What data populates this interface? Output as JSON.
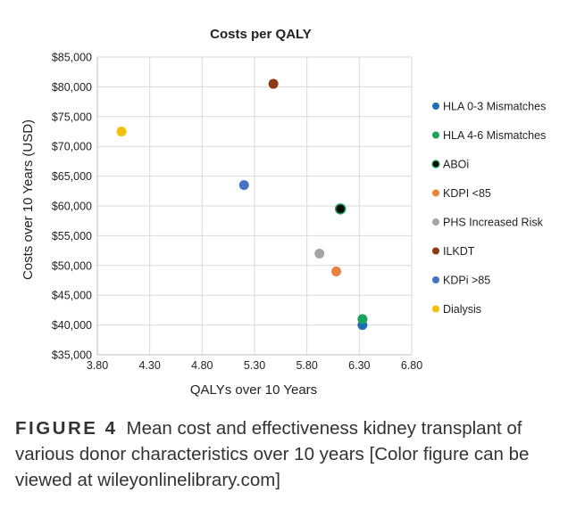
{
  "chart_data": {
    "type": "scatter",
    "title": "Costs per QALY",
    "xlabel": "QALYs over 10 Years",
    "ylabel": "Costs over 10 Years (USD)",
    "xlim": [
      3.8,
      6.8
    ],
    "ylim": [
      35000,
      85000
    ],
    "xticks": [
      3.8,
      4.3,
      4.8,
      5.3,
      5.8,
      6.3,
      6.8
    ],
    "xtick_labels": [
      "3.80",
      "4.30",
      "4.80",
      "5.30",
      "5.80",
      "6.30",
      "6.80"
    ],
    "yticks": [
      35000,
      40000,
      45000,
      50000,
      55000,
      60000,
      65000,
      70000,
      75000,
      80000,
      85000
    ],
    "ytick_labels": [
      "$35,000",
      "$40,000",
      "$45,000",
      "$50,000",
      "$55,000",
      "$60,000",
      "$65,000",
      "$70,000",
      "$75,000",
      "$80,000",
      "$85,000"
    ],
    "grid": true,
    "legend_position": "right",
    "series": [
      {
        "name": "HLA 0-3 Mismatches",
        "x": 6.33,
        "y": 40000,
        "color": "#1f6fb5"
      },
      {
        "name": "HLA 4-6 Mismatches",
        "x": 6.33,
        "y": 41000,
        "color": "#1aa35a"
      },
      {
        "name": "ABOi",
        "x": 6.12,
        "y": 59500,
        "color": "#0a0a0a"
      },
      {
        "name": "KDPI <85",
        "x": 6.08,
        "y": 49000,
        "color": "#e8823a"
      },
      {
        "name": "PHS Increased Risk",
        "x": 5.92,
        "y": 52000,
        "color": "#a5a5a5"
      },
      {
        "name": "ILKDT",
        "x": 5.48,
        "y": 80500,
        "color": "#8b3a12"
      },
      {
        "name": "KDPi >85",
        "x": 5.2,
        "y": 63500,
        "color": "#4472c4"
      },
      {
        "name": "Dialysis",
        "x": 4.03,
        "y": 72500,
        "color": "#f2c00c"
      }
    ]
  },
  "caption": {
    "label": "FIGURE 4",
    "text": "Mean cost and effectiveness kidney transplant of various donor characteristics over 10 years [Color figure can be viewed at wileyonlinelibrary.com]"
  }
}
